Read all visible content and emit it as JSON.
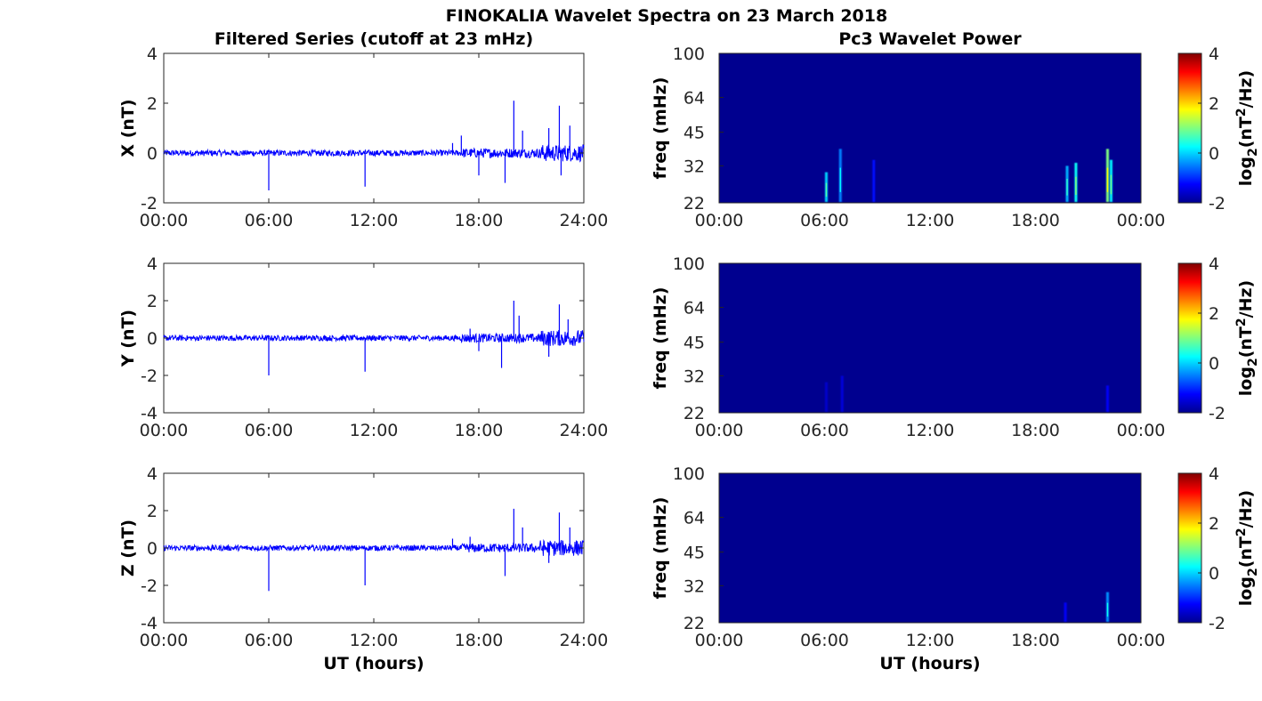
{
  "figure": {
    "title": "FINOKALIA Wavelet Spectra on 23 March 2018",
    "left_column_title": "Filtered Series (cutoff at 23 mHz)",
    "right_column_title": "Pc3 Wavelet Power",
    "xlabel": "UT (hours)"
  },
  "colors": {
    "series": "#0000ff",
    "spectrum_background": "#00008f",
    "axis": "#262626"
  },
  "colormap": "jet",
  "chart_data": [
    {
      "type": "line",
      "component": "X",
      "ylabel": "X (nT)",
      "ylim": [
        -2,
        4
      ],
      "yticks": [
        "-2",
        "0",
        "2",
        "4"
      ],
      "xlim": [
        0,
        24
      ],
      "xticks": [
        "00:00",
        "06:00",
        "12:00",
        "18:00",
        "24:00"
      ],
      "baseline_noise": 0.12,
      "spikes": [
        {
          "x": 6.0,
          "y": -1.5
        },
        {
          "x": 11.5,
          "y": -1.35
        },
        {
          "x": 16.5,
          "y": 0.4
        },
        {
          "x": 17.0,
          "y": 0.7
        },
        {
          "x": 18.0,
          "y": -0.9
        },
        {
          "x": 19.5,
          "y": -1.2
        },
        {
          "x": 20.0,
          "y": 2.1
        },
        {
          "x": 20.5,
          "y": 0.9
        },
        {
          "x": 22.0,
          "y": 1.0
        },
        {
          "x": 22.6,
          "y": 1.9
        },
        {
          "x": 22.7,
          "y": -0.9
        },
        {
          "x": 23.2,
          "y": 1.1
        }
      ]
    },
    {
      "type": "heatmap",
      "component": "X",
      "ylabel": "freq (mHz)",
      "yticks": [
        "22",
        "32",
        "45",
        "64",
        "100"
      ],
      "xticks": [
        "00:00",
        "06:00",
        "12:00",
        "18:00",
        "00:00"
      ],
      "colorbar": {
        "label": "log2(nT^2/Hz)",
        "range": [
          -2,
          4
        ],
        "ticks": [
          "-2",
          "0",
          "2",
          "4"
        ]
      },
      "background_value": -2,
      "events": [
        {
          "time": 6.1,
          "freq_max": 30,
          "value": 0.0
        },
        {
          "time": 6.9,
          "freq_max": 38,
          "value": -0.5
        },
        {
          "time": 8.8,
          "freq_max": 34,
          "value": -1.2
        },
        {
          "time": 19.8,
          "freq_max": 32,
          "value": -0.2
        },
        {
          "time": 20.3,
          "freq_max": 33,
          "value": 0.3
        },
        {
          "time": 22.1,
          "freq_max": 38,
          "value": 1.0
        },
        {
          "time": 22.3,
          "freq_max": 34,
          "value": 0.2
        }
      ]
    },
    {
      "type": "line",
      "component": "Y",
      "ylabel": "Y (nT)",
      "ylim": [
        -4,
        4
      ],
      "yticks": [
        "-4",
        "-2",
        "0",
        "2",
        "4"
      ],
      "xlim": [
        0,
        24
      ],
      "xticks": [
        "00:00",
        "06:00",
        "12:00",
        "18:00",
        "24:00"
      ],
      "baseline_noise": 0.15,
      "spikes": [
        {
          "x": 6.0,
          "y": -2.0
        },
        {
          "x": 11.5,
          "y": -1.8
        },
        {
          "x": 17.5,
          "y": 0.5
        },
        {
          "x": 18.0,
          "y": -0.7
        },
        {
          "x": 19.3,
          "y": -1.6
        },
        {
          "x": 20.0,
          "y": 2.0
        },
        {
          "x": 20.3,
          "y": 1.2
        },
        {
          "x": 22.0,
          "y": -1.0
        },
        {
          "x": 22.6,
          "y": 1.8
        },
        {
          "x": 23.1,
          "y": 1.0
        }
      ]
    },
    {
      "type": "heatmap",
      "component": "Y",
      "ylabel": "freq (mHz)",
      "yticks": [
        "22",
        "32",
        "45",
        "64",
        "100"
      ],
      "xticks": [
        "00:00",
        "06:00",
        "12:00",
        "18:00",
        "00:00"
      ],
      "colorbar": {
        "label": "log2(nT^2/Hz)",
        "range": [
          -2,
          4
        ],
        "ticks": [
          "-2",
          "0",
          "2",
          "4"
        ]
      },
      "background_value": -2,
      "events": [
        {
          "time": 6.1,
          "freq_max": 30,
          "value": -1.6
        },
        {
          "time": 7.0,
          "freq_max": 32,
          "value": -1.5
        },
        {
          "time": 22.1,
          "freq_max": 29,
          "value": -1.3
        }
      ]
    },
    {
      "type": "line",
      "component": "Z",
      "ylabel": "Z (nT)",
      "ylim": [
        -4,
        4
      ],
      "yticks": [
        "-4",
        "-2",
        "0",
        "2",
        "4"
      ],
      "xlim": [
        0,
        24
      ],
      "xticks": [
        "00:00",
        "06:00",
        "12:00",
        "18:00",
        "24:00"
      ],
      "baseline_noise": 0.15,
      "spikes": [
        {
          "x": 6.0,
          "y": -2.3
        },
        {
          "x": 11.5,
          "y": -2.0
        },
        {
          "x": 16.5,
          "y": 0.5
        },
        {
          "x": 17.5,
          "y": 0.6
        },
        {
          "x": 19.5,
          "y": -1.5
        },
        {
          "x": 20.0,
          "y": 2.1
        },
        {
          "x": 20.5,
          "y": 1.1
        },
        {
          "x": 22.0,
          "y": -0.8
        },
        {
          "x": 22.6,
          "y": 1.9
        },
        {
          "x": 23.2,
          "y": 1.1
        }
      ]
    },
    {
      "type": "heatmap",
      "component": "Z",
      "ylabel": "freq (mHz)",
      "yticks": [
        "22",
        "32",
        "45",
        "64",
        "100"
      ],
      "xticks": [
        "00:00",
        "06:00",
        "12:00",
        "18:00",
        "00:00"
      ],
      "colorbar": {
        "label": "log2(nT^2/Hz)",
        "range": [
          -2,
          4
        ],
        "ticks": [
          "-2",
          "0",
          "2",
          "4"
        ]
      },
      "background_value": -2,
      "events": [
        {
          "time": 19.7,
          "freq_max": 27,
          "value": -1.3
        },
        {
          "time": 22.1,
          "freq_max": 30,
          "value": -0.4
        }
      ]
    }
  ]
}
